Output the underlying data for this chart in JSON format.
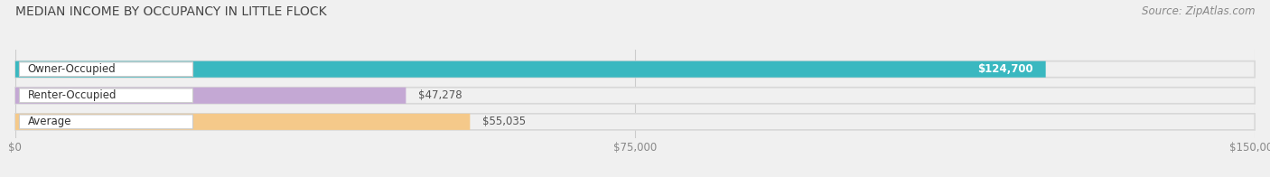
{
  "title": "MEDIAN INCOME BY OCCUPANCY IN LITTLE FLOCK",
  "source": "Source: ZipAtlas.com",
  "categories": [
    "Owner-Occupied",
    "Renter-Occupied",
    "Average"
  ],
  "values": [
    124700,
    47278,
    55035
  ],
  "bar_colors": [
    "#3ab8c0",
    "#c4a8d4",
    "#f5c98a"
  ],
  "value_labels": [
    "$124,700",
    "$47,278",
    "$55,035"
  ],
  "value_inside": [
    true,
    false,
    false
  ],
  "xlim": [
    0,
    150000
  ],
  "xtick_labels": [
    "$0",
    "$75,000",
    "$150,000"
  ],
  "xtick_vals": [
    0,
    75000,
    150000
  ],
  "title_fontsize": 10,
  "source_fontsize": 8.5,
  "cat_fontsize": 8.5,
  "value_fontsize": 8.5,
  "bg_color": "#f0f0f0",
  "bar_bg_color": "#e8e8e8",
  "bar_row_bg": "#f5f5f5"
}
